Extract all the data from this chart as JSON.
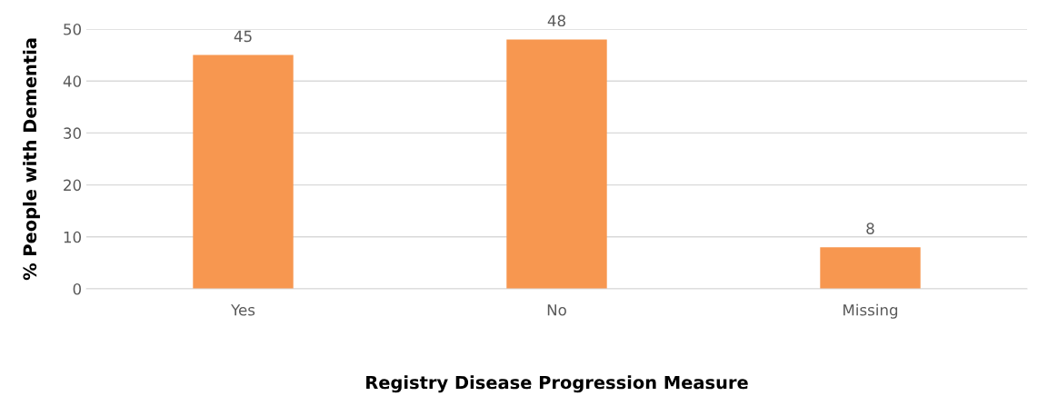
{
  "chart_data": {
    "type": "bar",
    "xlabel": "Registry Disease Progression Measure",
    "ylabel": "% People with Dementia",
    "categories": [
      "Yes",
      "No",
      "Missing"
    ],
    "values": [
      45,
      48,
      8
    ],
    "color": "#f79750",
    "ylim": [
      0,
      50
    ],
    "yticks": [
      0,
      10,
      20,
      30,
      40,
      50
    ],
    "grid": "y",
    "data_labels": true
  }
}
